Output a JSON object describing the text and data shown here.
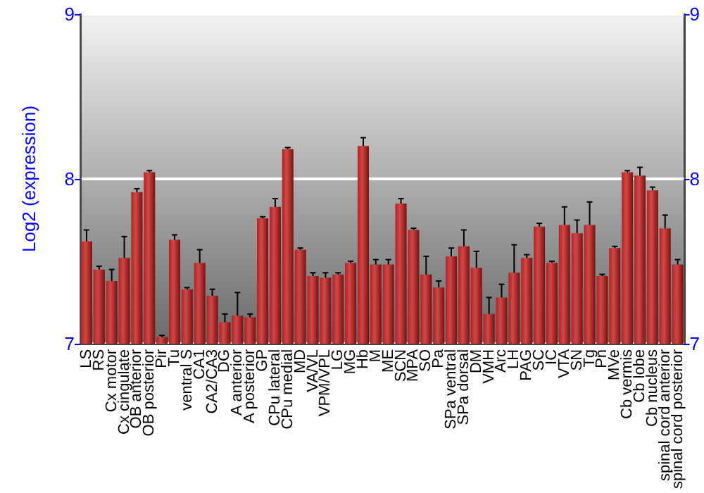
{
  "chart_data": {
    "type": "bar",
    "ylabel": "Log2 (expression)",
    "categories": [
      "LS",
      "RS",
      "Cx motor",
      "Cx cingulate",
      "OB anterior",
      "OB posterior",
      "Pir",
      "Tu",
      "ventral S",
      "CA1",
      "CA2/CA3",
      "DG",
      "A anterior",
      "A posterior",
      "GP",
      "CPu lateral",
      "CPu medial",
      "MD",
      "VA/VL",
      "VPM/VPL",
      "LG",
      "MG",
      "Hb",
      "M",
      "ME",
      "SCN",
      "MPA",
      "SO",
      "Pa",
      "SPa ventral",
      "SPa dorsal",
      "DM",
      "VMH",
      "Arc",
      "LH",
      "PAG",
      "SC",
      "IC",
      "VTA",
      "SN",
      "Tg",
      "Pn",
      "MVe",
      "Cb vermis",
      "Cb lobe",
      "Cb nucleus",
      "spinal cord anterior",
      "spinal cord posterior"
    ],
    "values": [
      7.62,
      7.45,
      7.38,
      7.52,
      7.92,
      8.04,
      7.04,
      7.63,
      7.33,
      7.49,
      7.29,
      7.13,
      7.17,
      7.16,
      7.76,
      7.83,
      8.18,
      7.57,
      7.41,
      7.4,
      7.42,
      7.49,
      8.2,
      7.48,
      7.48,
      7.85,
      7.69,
      7.42,
      7.34,
      7.53,
      7.59,
      7.46,
      7.18,
      7.28,
      7.43,
      7.52,
      7.71,
      7.49,
      7.72,
      7.67,
      7.72,
      7.41,
      7.58,
      8.04,
      8.02,
      7.93,
      7.7,
      7.48
    ],
    "errors": [
      0.07,
      0.02,
      0.07,
      0.13,
      0.02,
      0.01,
      0.01,
      0.03,
      0.01,
      0.08,
      0.04,
      0.05,
      0.14,
      0.02,
      0.01,
      0.05,
      0.01,
      0.01,
      0.02,
      0.03,
      0.01,
      0.01,
      0.05,
      0.03,
      0.03,
      0.03,
      0.01,
      0.11,
      0.04,
      0.05,
      0.1,
      0.1,
      0.1,
      0.08,
      0.17,
      0.02,
      0.02,
      0.01,
      0.11,
      0.08,
      0.14,
      0.01,
      0.01,
      0.01,
      0.05,
      0.02,
      0.08,
      0.03
    ],
    "color": "#b22222",
    "ylim": [
      7,
      9
    ],
    "yticks": [
      7,
      8,
      9
    ],
    "y2lim": [
      7,
      9
    ],
    "y2ticks": [
      7,
      8,
      9
    ],
    "grid": "y"
  }
}
